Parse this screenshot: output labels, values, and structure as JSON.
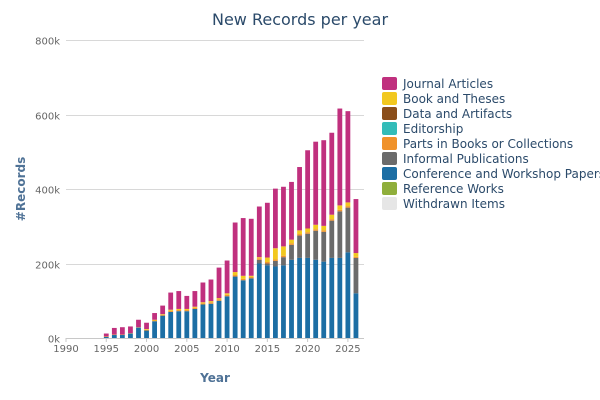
{
  "chart_data": {
    "type": "bar",
    "stacked": true,
    "title": "New Records per year",
    "xlabel": "Year",
    "ylabel": "#Records",
    "xlim": [
      1990,
      2027
    ],
    "ylim": [
      0,
      800000
    ],
    "x_ticks": [
      1990,
      1995,
      2000,
      2005,
      2010,
      2015,
      2020,
      2025
    ],
    "x_tick_labels": [
      "1990",
      "1995",
      "2000",
      "2005",
      "2010",
      "2015",
      "2020",
      "2025"
    ],
    "y_ticks": [
      0,
      200000,
      400000,
      600000,
      800000
    ],
    "y_tick_labels": [
      "0k",
      "200k",
      "400k",
      "600k",
      "800k"
    ],
    "grid": "horizontal",
    "legend_position": "right",
    "x": [
      1995,
      1996,
      1997,
      1998,
      1999,
      2000,
      2001,
      2002,
      2003,
      2004,
      2005,
      2006,
      2007,
      2008,
      2009,
      2010,
      2011,
      2012,
      2013,
      2014,
      2015,
      2016,
      2017,
      2018,
      2019,
      2020,
      2021,
      2022,
      2023,
      2024,
      2025,
      2026
    ],
    "series": [
      {
        "name": "Withdrawn Items",
        "color": "#e6e6e6",
        "values": [
          0,
          0,
          0,
          0,
          0,
          0,
          0,
          0,
          0,
          0,
          0,
          0,
          0,
          0,
          0,
          0,
          0,
          0,
          0,
          0,
          0,
          0,
          0,
          0,
          0,
          0,
          0,
          0,
          0,
          0,
          0,
          0
        ]
      },
      {
        "name": "Reference Works",
        "color": "#8fae3b",
        "values": [
          0,
          0,
          0,
          0,
          0,
          0,
          0,
          0,
          0,
          0,
          0,
          0,
          0,
          0,
          0,
          0,
          0,
          0,
          0,
          0,
          0,
          0,
          0,
          0,
          0,
          0,
          0,
          0,
          0,
          0,
          0,
          0
        ]
      },
      {
        "name": "Conference and Workshop Papers",
        "color": "#1c6ea4",
        "values": [
          3000,
          8000,
          8000,
          12000,
          28000,
          20000,
          45000,
          60000,
          70000,
          72000,
          72000,
          78000,
          90000,
          92000,
          100000,
          112000,
          165000,
          155000,
          160000,
          200000,
          195000,
          192000,
          195000,
          210000,
          215000,
          215000,
          210000,
          205000,
          215000,
          215000,
          230000,
          120000
        ]
      },
      {
        "name": "Informal Publications",
        "color": "#6b6b6b",
        "values": [
          0,
          0,
          0,
          0,
          0,
          0,
          0,
          0,
          0,
          0,
          0,
          0,
          0,
          0,
          0,
          0,
          0,
          0,
          0,
          10000,
          5000,
          15000,
          22000,
          40000,
          60000,
          65000,
          78000,
          80000,
          100000,
          125000,
          120000,
          95000
        ]
      },
      {
        "name": "Parts in Books or Collections",
        "color": "#f0922b",
        "values": [
          0,
          0,
          0,
          0,
          0,
          2000,
          2000,
          2000,
          3000,
          3000,
          3000,
          3000,
          3000,
          4000,
          4000,
          4000,
          4000,
          4000,
          4000,
          4000,
          4000,
          4000,
          4000,
          4000,
          4000,
          4000,
          4000,
          4000,
          4000,
          4000,
          4000,
          3000
        ]
      },
      {
        "name": "Editorship",
        "color": "#33bcb8",
        "values": [
          0,
          0,
          0,
          0,
          0,
          0,
          0,
          0,
          0,
          0,
          0,
          0,
          0,
          0,
          0,
          0,
          0,
          0,
          0,
          0,
          0,
          0,
          0,
          0,
          0,
          0,
          0,
          0,
          0,
          0,
          0,
          0
        ]
      },
      {
        "name": "Data and Artifacts",
        "color": "#8b4e1a",
        "values": [
          0,
          0,
          0,
          0,
          0,
          0,
          0,
          0,
          0,
          0,
          0,
          0,
          0,
          0,
          0,
          0,
          0,
          0,
          0,
          0,
          0,
          0,
          0,
          0,
          0,
          0,
          0,
          0,
          0,
          0,
          0,
          0
        ]
      },
      {
        "name": "Book and Theses",
        "color": "#f2c81f",
        "values": [
          1000,
          1000,
          1000,
          1000,
          1000,
          2000,
          2000,
          2000,
          3000,
          3000,
          3000,
          3000,
          3000,
          3000,
          3000,
          4000,
          8000,
          8000,
          3000,
          3000,
          12000,
          30000,
          25000,
          10000,
          10000,
          10000,
          12000,
          12000,
          12000,
          12000,
          10000,
          10000
        ]
      },
      {
        "name": "Journal Articles",
        "color": "#c0307e",
        "values": [
          8000,
          18000,
          20000,
          18000,
          20000,
          17000,
          18000,
          23000,
          46000,
          48000,
          35000,
          42000,
          53000,
          58000,
          82000,
          88000,
          133000,
          155000,
          153000,
          136000,
          147000,
          160000,
          160000,
          155000,
          170000,
          210000,
          223000,
          230000,
          220000,
          260000,
          245000,
          145000
        ]
      }
    ],
    "legend_order": [
      "Journal Articles",
      "Book and Theses",
      "Data and Artifacts",
      "Editorship",
      "Parts in Books or Collections",
      "Informal Publications",
      "Conference and Workshop Papers",
      "Reference Works",
      "Withdrawn Items"
    ]
  }
}
